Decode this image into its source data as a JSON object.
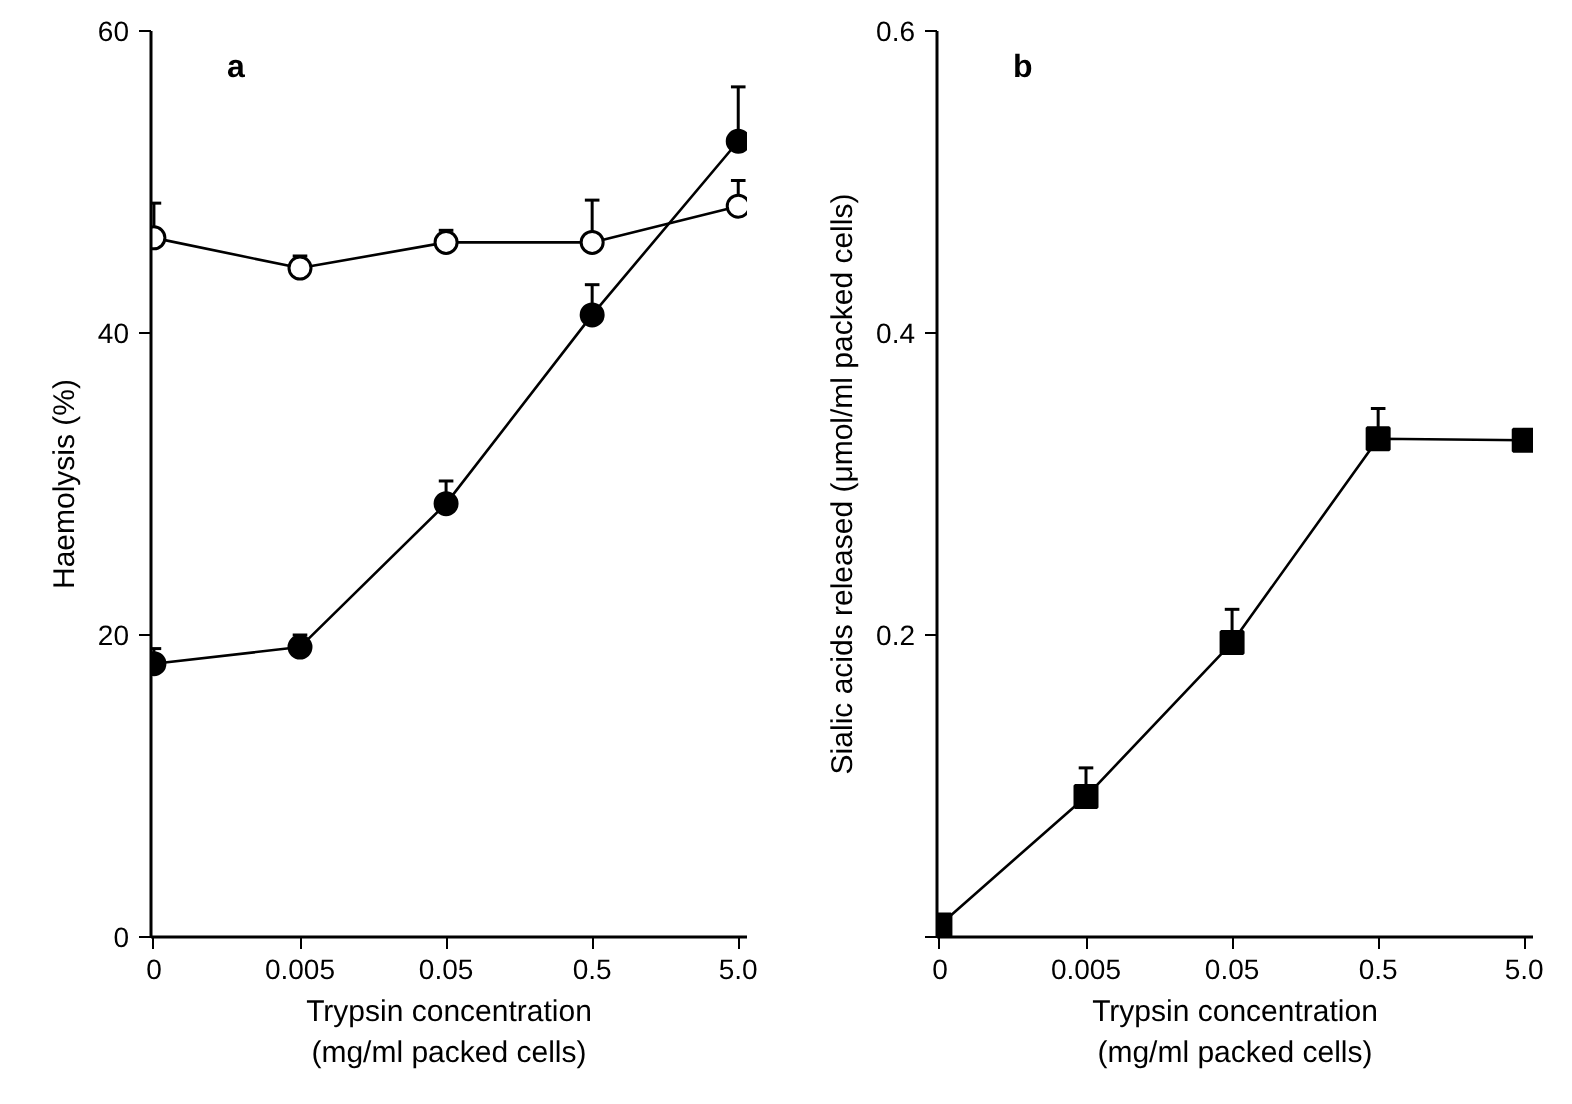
{
  "chart_data": [
    {
      "type": "line",
      "categories": [
        "0",
        "0.005",
        "0.05",
        "0.5",
        "5.0"
      ],
      "xlabel": "Trypsin concentration\n(mg/ml packed cells)",
      "ylabel": "Haemolysis (%)",
      "ylim": [
        0,
        60
      ],
      "yticks": [
        0,
        20,
        40,
        60
      ],
      "annotations": [
        "a"
      ],
      "series": [
        {
          "color": "#ffffff",
          "marker": "circle",
          "values": [
            46.3,
            44.3,
            46.0,
            46.0,
            48.4
          ],
          "errors": [
            [
              46.3,
              48.6
            ],
            [
              44.3,
              45.1
            ],
            [
              46.0,
              46.8
            ],
            [
              46.0,
              48.8
            ],
            [
              48.4,
              50.1
            ]
          ]
        },
        {
          "color": "#000000",
          "marker": "circle",
          "values": [
            18.1,
            19.2,
            28.7,
            41.2,
            52.7
          ],
          "errors": [
            [
              18.1,
              19.1
            ],
            [
              19.2,
              20.0
            ],
            [
              28.7,
              30.2
            ],
            [
              41.2,
              43.2
            ],
            [
              52.7,
              56.3
            ]
          ]
        }
      ]
    },
    {
      "type": "line",
      "categories": [
        "0",
        "0.005",
        "0.05",
        "0.5",
        "5.0"
      ],
      "xlabel": "Trypsin concentration\n(mg/ml packed cells)",
      "ylabel": "Sialic acids released (μmol/ml packed cells)",
      "ylim": [
        0,
        0.6
      ],
      "yticks": [
        {
          "value": 0,
          "label": null
        },
        0.2,
        0.4,
        0.6
      ],
      "annotations": [
        "b"
      ],
      "series": [
        {
          "color": "#000000",
          "marker": "square",
          "values": [
            0.008,
            0.093,
            0.195,
            0.33,
            0.329
          ],
          "errors": [
            null,
            [
              0.093,
              0.112
            ],
            [
              0.195,
              0.217
            ],
            [
              0.33,
              0.35
            ],
            null
          ]
        }
      ]
    }
  ]
}
